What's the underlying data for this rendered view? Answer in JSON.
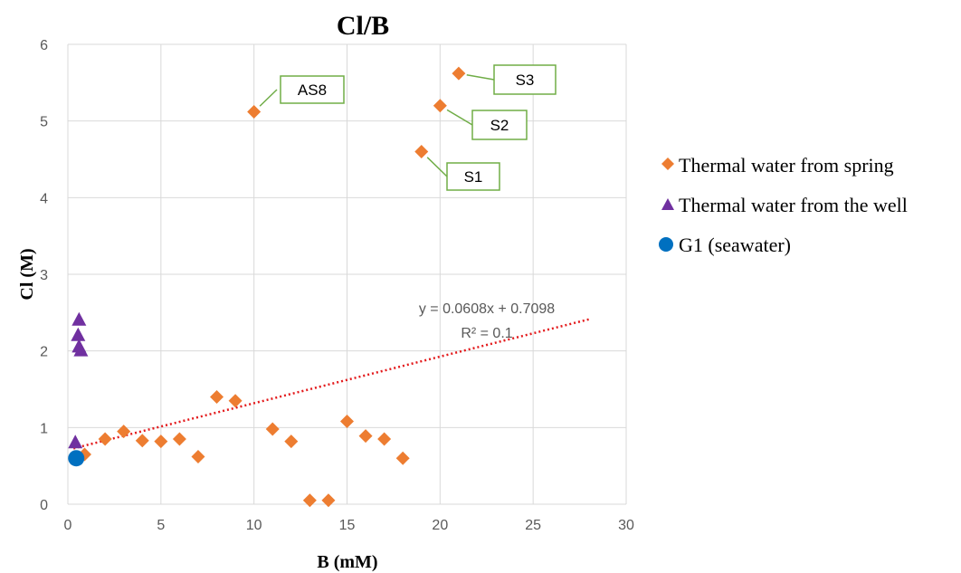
{
  "chart_data": {
    "type": "scatter",
    "title": "Cl/B",
    "xlabel": "B (mM)",
    "ylabel": "Cl (M)",
    "xlim": [
      0,
      30
    ],
    "ylim": [
      0,
      6
    ],
    "xticks": [
      0,
      5,
      10,
      15,
      20,
      25,
      30
    ],
    "yticks": [
      0,
      1,
      2,
      3,
      4,
      5,
      6
    ],
    "grid": true,
    "legend_position": "right",
    "series": [
      {
        "name": "Thermal water from spring",
        "marker": "diamond",
        "color": "#ED7D31",
        "points": [
          [
            0.9,
            0.65
          ],
          [
            2,
            0.85
          ],
          [
            3,
            0.95
          ],
          [
            4,
            0.83
          ],
          [
            5,
            0.82
          ],
          [
            6,
            0.85
          ],
          [
            7,
            0.62
          ],
          [
            8,
            1.4
          ],
          [
            9,
            1.35
          ],
          [
            10,
            5.12
          ],
          [
            11,
            0.98
          ],
          [
            12,
            0.82
          ],
          [
            13,
            0.05
          ],
          [
            14,
            0.05
          ],
          [
            15,
            1.08
          ],
          [
            16,
            0.89
          ],
          [
            17,
            0.85
          ],
          [
            18,
            0.6
          ],
          [
            19,
            4.6
          ],
          [
            20,
            5.2
          ],
          [
            21,
            5.62
          ]
        ]
      },
      {
        "name": "Thermal water from the well",
        "marker": "triangle",
        "color": "#7030A0",
        "points": [
          [
            0.6,
            2.4
          ],
          [
            0.55,
            2.2
          ],
          [
            0.6,
            2.05
          ],
          [
            0.7,
            2.0
          ],
          [
            0.4,
            0.8
          ]
        ]
      },
      {
        "name": "G1 (seawater)",
        "marker": "circle",
        "color": "#0070C0",
        "points": [
          [
            0.45,
            0.6
          ]
        ]
      }
    ],
    "trendline": {
      "slope": 0.0608,
      "intercept": 0.7098,
      "x_range": [
        0.3,
        28
      ],
      "color": "#E31A1C",
      "equation": "y = 0.0608x + 0.7098",
      "r_squared": "R² = 0.1"
    },
    "annotations": [
      {
        "label": "AS8",
        "point": [
          10,
          5.12
        ]
      },
      {
        "label": "S3",
        "point": [
          21,
          5.62
        ]
      },
      {
        "label": "S2",
        "point": [
          20,
          5.2
        ]
      },
      {
        "label": "S1",
        "point": [
          19,
          4.6
        ]
      }
    ]
  }
}
